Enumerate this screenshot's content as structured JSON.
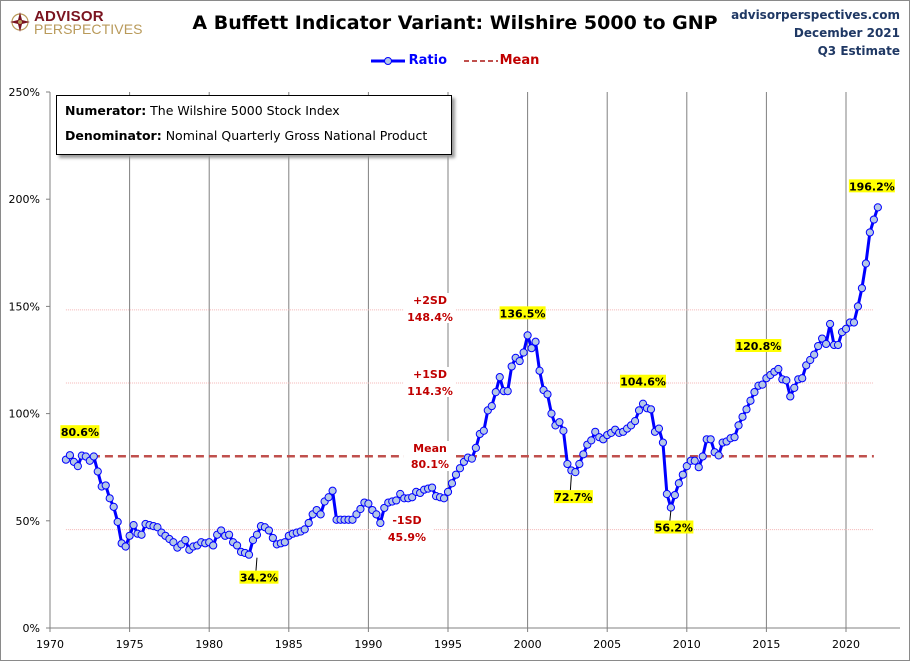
{
  "header": {
    "logo_top": "ADVISOR",
    "logo_bottom": "PERSPECTIVES",
    "title": "A Buffett Indicator Variant: Wilshire 5000 to GNP",
    "source_lines": [
      "advisorperspectives.com",
      "December 2021",
      "Q3 Estimate"
    ]
  },
  "legend": {
    "ratio_label": "Ratio",
    "mean_label": "Mean"
  },
  "infobox": {
    "numerator_label": "Numerator:",
    "numerator_value": " The Wilshire 5000 Stock Index",
    "denominator_label": "Denominator:",
    "denominator_value": " Nominal Quarterly Gross National Product"
  },
  "colors": {
    "series": "#0000ff",
    "marker_fill": "#b4c7e7",
    "mean": "#c0504d",
    "sd_line": "#f4b6b6",
    "sd_text": "#c00000",
    "callout_bg": "#ffff00",
    "grid": "#808080",
    "source_text": "#1f3864"
  },
  "chart_data": {
    "type": "line",
    "title": "A Buffett Indicator Variant: Wilshire 5000 to GNP",
    "xlabel": "",
    "ylabel": "",
    "xlim": [
      1970,
      2024
    ],
    "ylim": [
      0,
      250
    ],
    "x_ticks": [
      1970,
      1975,
      1980,
      1985,
      1990,
      1995,
      2000,
      2005,
      2010,
      2015,
      2020
    ],
    "y_ticks": [
      0,
      50,
      100,
      150,
      200,
      250
    ],
    "y_tick_labels": [
      "0%",
      "50%",
      "100%",
      "150%",
      "200%",
      "250%"
    ],
    "grid": "vertical",
    "legend_position": "top-center",
    "reference_lines": [
      {
        "name": "+2SD",
        "label": "+2SD",
        "value_label": "148.4%",
        "value": 148.4,
        "style": "dotted"
      },
      {
        "name": "+1SD",
        "label": "+1SD",
        "value_label": "114.3%",
        "value": 114.3,
        "style": "dotted"
      },
      {
        "name": "Mean",
        "label": "Mean",
        "value_label": "80.1%",
        "value": 80.1,
        "style": "dashed"
      },
      {
        "name": "-1SD",
        "label": "-1SD",
        "value_label": "45.9%",
        "value": 45.9,
        "style": "dotted"
      }
    ],
    "series": [
      {
        "name": "Ratio",
        "start_year": 1971.0,
        "step": 0.25,
        "values": [
          78.5,
          80.6,
          77.5,
          75.5,
          80.4,
          80.0,
          78.0,
          80.0,
          73.0,
          66.0,
          66.5,
          60.5,
          56.5,
          49.5,
          39.5,
          38.0,
          43.0,
          48.0,
          44.0,
          43.5,
          48.5,
          48.0,
          47.5,
          47.0,
          44.5,
          43.0,
          41.5,
          40.0,
          37.5,
          39.0,
          41.0,
          36.5,
          38.0,
          38.5,
          40.0,
          39.5,
          40.0,
          38.5,
          43.5,
          45.5,
          43.0,
          43.5,
          40.0,
          38.5,
          35.5,
          35.0,
          34.2,
          41.0,
          43.5,
          47.5,
          47.0,
          45.5,
          42.0,
          39.0,
          39.5,
          40.0,
          43.0,
          44.0,
          44.5,
          45.0,
          46.0,
          49.0,
          53.0,
          55.0,
          53.0,
          59.0,
          61.0,
          64.0,
          50.5,
          50.5,
          50.5,
          50.5,
          50.5,
          53.0,
          55.5,
          58.5,
          58.0,
          55.0,
          53.0,
          49.0,
          56.0,
          58.5,
          59.0,
          59.5,
          62.5,
          60.5,
          60.5,
          61.0,
          63.5,
          63.0,
          64.5,
          65.0,
          65.5,
          61.5,
          61.0,
          60.5,
          63.5,
          67.5,
          71.5,
          74.5,
          77.5,
          79.5,
          79.0,
          84.0,
          90.5,
          92.0,
          101.5,
          103.5,
          110.0,
          117.0,
          110.5,
          110.5,
          122.0,
          126.0,
          124.5,
          128.5,
          136.5,
          130.5,
          133.5,
          120.0,
          111.0,
          109.0,
          100.0,
          94.5,
          96.0,
          92.0,
          76.5,
          73.5,
          72.7,
          76.5,
          81.0,
          85.5,
          87.5,
          91.5,
          89.0,
          88.0,
          90.0,
          91.0,
          92.5,
          91.0,
          91.5,
          93.0,
          94.5,
          96.5,
          101.5,
          104.6,
          102.5,
          102.0,
          91.5,
          93.0,
          86.5,
          62.5,
          56.2,
          62.0,
          67.5,
          71.5,
          75.5,
          78.0,
          78.0,
          75.0,
          80.0,
          88.0,
          88.0,
          82.0,
          80.5,
          86.5,
          87.0,
          88.5,
          89.0,
          94.5,
          98.5,
          102.0,
          106.0,
          110.0,
          113.0,
          113.5,
          116.5,
          118.0,
          119.5,
          120.8,
          116.0,
          115.5,
          108.0,
          112.0,
          116.0,
          116.5,
          122.5,
          125.0,
          127.5,
          131.5,
          135.0,
          132.5,
          141.8,
          132.0,
          132.0,
          138.0,
          139.5,
          142.5,
          142.5,
          150.0,
          158.5,
          170.0,
          184.5,
          190.5,
          196.2
        ]
      },
      {
        "name": "Mean",
        "value": 80.1
      }
    ],
    "annotations": [
      {
        "label": "80.6%",
        "x": 1971.25,
        "y": 80.6
      },
      {
        "label": "34.2%",
        "x": 1983.0,
        "y": 34.2
      },
      {
        "label": "136.5%",
        "x": 2000.0,
        "y": 136.5
      },
      {
        "label": "72.7%",
        "x": 2002.75,
        "y": 72.7
      },
      {
        "label": "104.6%",
        "x": 2007.75,
        "y": 104.6
      },
      {
        "label": "56.2%",
        "x": 2009.0,
        "y": 56.2
      },
      {
        "label": "120.8%",
        "x": 2015.0,
        "y": 120.8
      },
      {
        "label": "196.2%",
        "x": 2021.5,
        "y": 196.2
      }
    ]
  }
}
